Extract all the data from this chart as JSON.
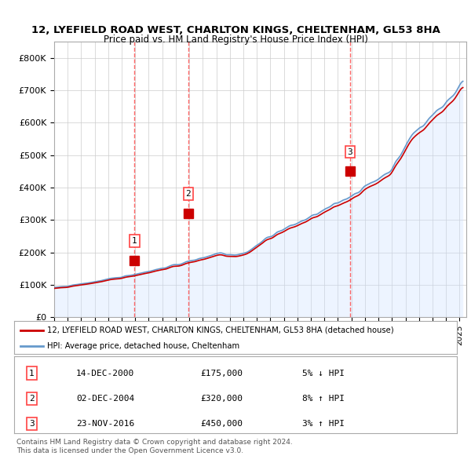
{
  "title_line1": "12, LYEFIELD ROAD WEST, CHARLTON KINGS, CHELTENHAM, GL53 8HA",
  "title_line2": "Price paid vs. HM Land Registry's House Price Index (HPI)",
  "ylabel_ticks": [
    "£0",
    "£100K",
    "£200K",
    "£300K",
    "£400K",
    "£500K",
    "£600K",
    "£700K",
    "£800K"
  ],
  "ytick_values": [
    0,
    100000,
    200000,
    300000,
    400000,
    500000,
    600000,
    700000,
    800000
  ],
  "ylim": [
    0,
    850000
  ],
  "xlim_start": 1995.0,
  "xlim_end": 2025.5,
  "xtick_years": [
    1995,
    1996,
    1997,
    1998,
    1999,
    2000,
    2001,
    2002,
    2003,
    2004,
    2005,
    2006,
    2007,
    2008,
    2009,
    2010,
    2011,
    2012,
    2013,
    2014,
    2015,
    2016,
    2017,
    2018,
    2019,
    2020,
    2021,
    2022,
    2023,
    2024,
    2025
  ],
  "hpi_color": "#6699cc",
  "price_color": "#cc0000",
  "vline_color": "#ff4444",
  "sale_markers": [
    {
      "year": 2000.95,
      "price": 175000,
      "label": "1"
    },
    {
      "year": 2004.92,
      "price": 320000,
      "label": "2"
    },
    {
      "year": 2016.9,
      "price": 450000,
      "label": "3"
    }
  ],
  "legend_entries": [
    {
      "label": "12, LYEFIELD ROAD WEST, CHARLTON KINGS, CHELTENHAM, GL53 8HA (detached house)",
      "color": "#cc0000"
    },
    {
      "label": "HPI: Average price, detached house, Cheltenham",
      "color": "#6699cc"
    }
  ],
  "table_rows": [
    {
      "num": "1",
      "date": "14-DEC-2000",
      "price": "£175,000",
      "hpi": "5% ↓ HPI"
    },
    {
      "num": "2",
      "date": "02-DEC-2004",
      "price": "£320,000",
      "hpi": "8% ↑ HPI"
    },
    {
      "num": "3",
      "date": "23-NOV-2016",
      "price": "£450,000",
      "hpi": "3% ↑ HPI"
    }
  ],
  "footnote": "Contains HM Land Registry data © Crown copyright and database right 2024.\nThis data is licensed under the Open Government Licence v3.0.",
  "bg_color": "#ffffff",
  "plot_bg_color": "#ffffff",
  "grid_color": "#cccccc",
  "hpi_fill_color": "#cce0ff"
}
